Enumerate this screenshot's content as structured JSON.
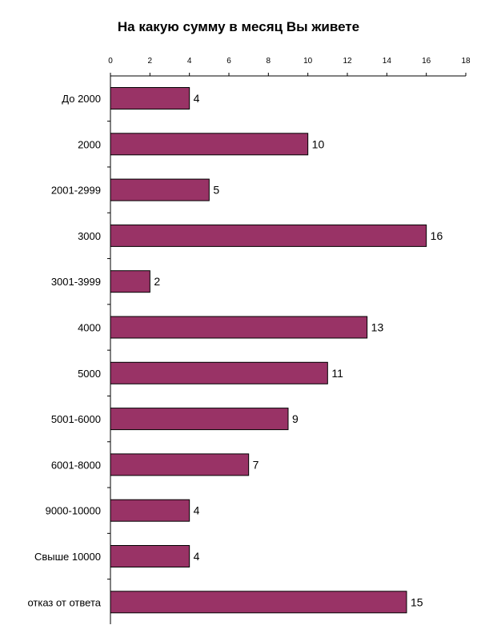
{
  "chart_data": {
    "type": "bar",
    "orientation": "horizontal",
    "title": "На какую сумму в месяц Вы живете",
    "xlabel": "",
    "ylabel": "",
    "xlim": [
      0,
      18
    ],
    "x_ticks": [
      0,
      2,
      4,
      6,
      8,
      10,
      12,
      14,
      16,
      18
    ],
    "x_axis_position": "top",
    "grid": false,
    "legend": "none",
    "bar_color": "#993366",
    "categories": [
      "До 2000",
      "2000",
      "2001-2999",
      "3000",
      "3001-3999",
      "4000",
      "5000",
      "5001-6000",
      "6001-8000",
      "9000-10000",
      "Свыше 10000",
      "отказ от ответа"
    ],
    "values": [
      4,
      10,
      5,
      16,
      2,
      13,
      11,
      9,
      7,
      4,
      4,
      15
    ]
  }
}
